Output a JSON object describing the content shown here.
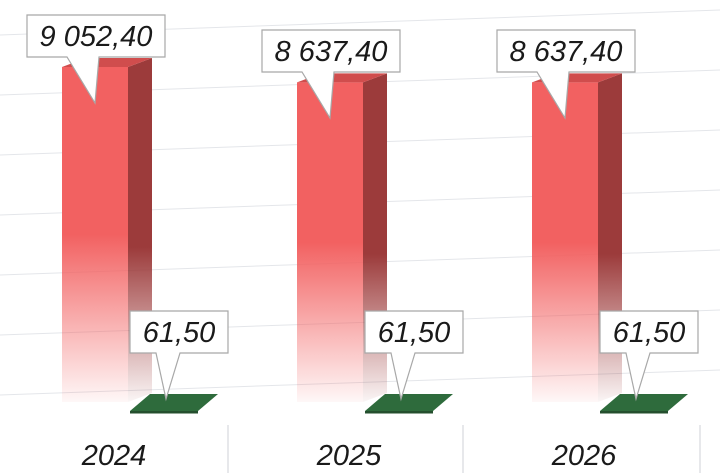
{
  "chart_data": {
    "type": "bar",
    "categories": [
      "2024",
      "2025",
      "2026"
    ],
    "series": [
      {
        "values": [
          9052.4,
          8637.4,
          8637.4
        ],
        "labels": [
          "9 052,40",
          "8 637,40",
          "8 637,40"
        ],
        "color": "#f26161"
      },
      {
        "values": [
          61.5,
          61.5,
          61.5
        ],
        "labels": [
          "61,50",
          "61,50",
          "61,50"
        ],
        "color": "#2e6b3c"
      }
    ],
    "grid": true,
    "legend": "none",
    "three_d": true
  }
}
